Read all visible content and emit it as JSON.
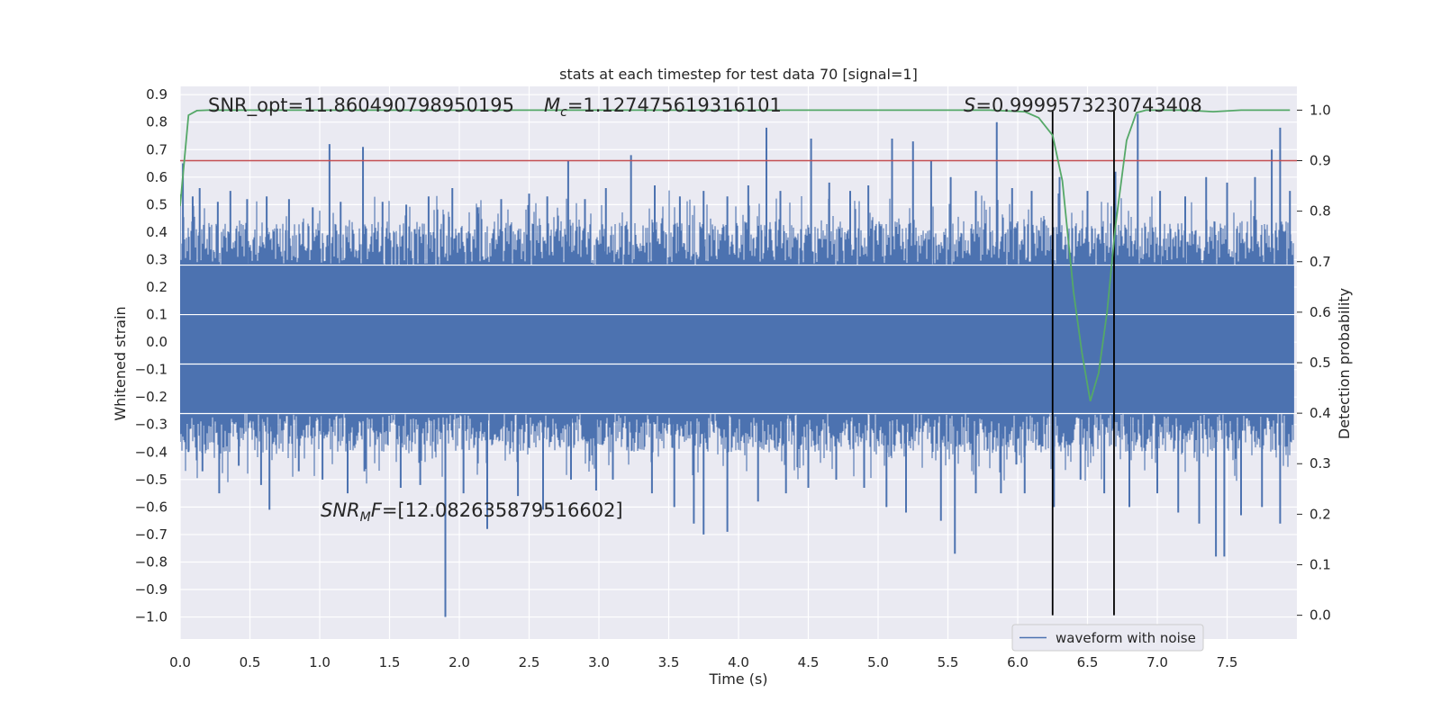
{
  "chart_data": {
    "type": "line",
    "title": "stats at each timestep for test data 70 [signal=1]",
    "xlabel": "Time (s)",
    "ylabel": "Whitened strain",
    "y2label": "Detection probability",
    "xlim": [
      0.0,
      8.0
    ],
    "ylim": [
      -1.08,
      0.93
    ],
    "y2lim": [
      -0.047,
      1.047
    ],
    "xticks": [
      0.0,
      0.5,
      1.0,
      1.5,
      2.0,
      2.5,
      3.0,
      3.5,
      4.0,
      4.5,
      5.0,
      5.5,
      6.0,
      6.5,
      7.0,
      7.5
    ],
    "xtick_labels": [
      "0.0",
      "0.5",
      "1.0",
      "1.5",
      "2.0",
      "2.5",
      "3.0",
      "3.5",
      "4.0",
      "4.5",
      "5.0",
      "5.5",
      "6.0",
      "6.5",
      "7.0",
      "7.5"
    ],
    "yticks": [
      0.9,
      0.8,
      0.7,
      0.6,
      0.5,
      0.4,
      0.3,
      0.2,
      0.1,
      0.0,
      -0.1,
      -0.2,
      -0.3,
      -0.4,
      -0.5,
      -0.6,
      -0.7,
      -0.8,
      -0.9,
      -1.0
    ],
    "ytick_labels": [
      "0.9",
      "0.8",
      "0.7",
      "0.6",
      "0.5",
      "0.4",
      "0.3",
      "0.2",
      "0.1",
      "0.0",
      "−0.1",
      "−0.2",
      "−0.3",
      "−0.4",
      "−0.5",
      "−0.6",
      "−0.7",
      "−0.8",
      "−0.9",
      "−1.0"
    ],
    "y2ticks": [
      1.0,
      0.9,
      0.8,
      0.7,
      0.6,
      0.5,
      0.4,
      0.3,
      0.2,
      0.1,
      0.0
    ],
    "y2tick_labels": [
      "1.0",
      "0.9",
      "0.8",
      "0.7",
      "0.6",
      "0.5",
      "0.4",
      "0.3",
      "0.2",
      "0.1",
      "0.0"
    ],
    "annotations": {
      "snr_opt": "SNR_opt=11.860490798950195",
      "mc_symbol": "M",
      "mc_sub": "c",
      "mc_value": "=1.127475619316101",
      "s_symbol": "S",
      "s_value": "=0.9999573230743408",
      "snr_mf_symbol": "SNR",
      "snr_mf_sub": "M",
      "snr_mf_mid": "F",
      "snr_mf_value": "=[12.082635879516602]"
    },
    "threshold": 0.9,
    "vlines": [
      6.25,
      6.69
    ],
    "legend": {
      "label": "waveform with noise",
      "placement": "lower-right"
    },
    "series": [
      {
        "name": "waveform with noise",
        "color": "#4c72b0",
        "core_amplitude": 0.28,
        "spikes": [
          {
            "x": 0.02,
            "y": 0.65
          },
          {
            "x": 0.09,
            "y": 0.53
          },
          {
            "x": 0.14,
            "y": 0.56
          },
          {
            "x": 0.27,
            "y": 0.51
          },
          {
            "x": 0.36,
            "y": 0.55
          },
          {
            "x": 0.48,
            "y": 0.52
          },
          {
            "x": 0.62,
            "y": 0.53
          },
          {
            "x": 0.78,
            "y": 0.52
          },
          {
            "x": 0.95,
            "y": 0.49
          },
          {
            "x": 1.07,
            "y": 0.72
          },
          {
            "x": 1.15,
            "y": 0.51
          },
          {
            "x": 1.31,
            "y": 0.71
          },
          {
            "x": 1.45,
            "y": 0.51
          },
          {
            "x": 1.62,
            "y": 0.5
          },
          {
            "x": 1.78,
            "y": 0.53
          },
          {
            "x": 1.95,
            "y": 0.56
          },
          {
            "x": 2.13,
            "y": 0.49
          },
          {
            "x": 2.3,
            "y": 0.52
          },
          {
            "x": 2.5,
            "y": 0.54
          },
          {
            "x": 2.63,
            "y": 0.53
          },
          {
            "x": 2.78,
            "y": 0.66
          },
          {
            "x": 2.9,
            "y": 0.52
          },
          {
            "x": 3.05,
            "y": 0.56
          },
          {
            "x": 3.23,
            "y": 0.68
          },
          {
            "x": 3.4,
            "y": 0.57
          },
          {
            "x": 3.58,
            "y": 0.53
          },
          {
            "x": 3.75,
            "y": 0.55
          },
          {
            "x": 3.92,
            "y": 0.53
          },
          {
            "x": 4.07,
            "y": 0.57
          },
          {
            "x": 4.2,
            "y": 0.78
          },
          {
            "x": 4.3,
            "y": 0.55
          },
          {
            "x": 4.52,
            "y": 0.74
          },
          {
            "x": 4.65,
            "y": 0.58
          },
          {
            "x": 4.8,
            "y": 0.55
          },
          {
            "x": 4.93,
            "y": 0.57
          },
          {
            "x": 5.1,
            "y": 0.74
          },
          {
            "x": 5.25,
            "y": 0.73
          },
          {
            "x": 5.38,
            "y": 0.66
          },
          {
            "x": 5.52,
            "y": 0.6
          },
          {
            "x": 5.7,
            "y": 0.55
          },
          {
            "x": 5.85,
            "y": 0.8
          },
          {
            "x": 5.96,
            "y": 0.56
          },
          {
            "x": 6.1,
            "y": 0.55
          },
          {
            "x": 6.3,
            "y": 0.6
          },
          {
            "x": 6.5,
            "y": 0.55
          },
          {
            "x": 6.7,
            "y": 0.62
          },
          {
            "x": 6.86,
            "y": 0.83
          },
          {
            "x": 7.02,
            "y": 0.55
          },
          {
            "x": 7.2,
            "y": 0.53
          },
          {
            "x": 7.35,
            "y": 0.6
          },
          {
            "x": 7.5,
            "y": 0.58
          },
          {
            "x": 7.7,
            "y": 0.6
          },
          {
            "x": 7.82,
            "y": 0.7
          },
          {
            "x": 7.88,
            "y": 0.78
          },
          {
            "x": 7.95,
            "y": 0.55
          },
          {
            "x": 0.06,
            "y": -0.4
          },
          {
            "x": 0.16,
            "y": -0.47
          },
          {
            "x": 0.28,
            "y": -0.55
          },
          {
            "x": 0.42,
            "y": -0.45
          },
          {
            "x": 0.58,
            "y": -0.52
          },
          {
            "x": 0.64,
            "y": -0.61
          },
          {
            "x": 0.85,
            "y": -0.47
          },
          {
            "x": 1.02,
            "y": -0.5
          },
          {
            "x": 1.2,
            "y": -0.55
          },
          {
            "x": 1.32,
            "y": -0.47
          },
          {
            "x": 1.58,
            "y": -0.53
          },
          {
            "x": 1.72,
            "y": -0.52
          },
          {
            "x": 1.9,
            "y": -1.0
          },
          {
            "x": 2.03,
            "y": -0.55
          },
          {
            "x": 2.2,
            "y": -0.68
          },
          {
            "x": 2.42,
            "y": -0.56
          },
          {
            "x": 2.6,
            "y": -0.61
          },
          {
            "x": 2.8,
            "y": -0.5
          },
          {
            "x": 2.98,
            "y": -0.54
          },
          {
            "x": 3.1,
            "y": -0.5
          },
          {
            "x": 3.38,
            "y": -0.55
          },
          {
            "x": 3.54,
            "y": -0.6
          },
          {
            "x": 3.68,
            "y": -0.66
          },
          {
            "x": 3.75,
            "y": -0.7
          },
          {
            "x": 3.92,
            "y": -0.69
          },
          {
            "x": 4.14,
            "y": -0.58
          },
          {
            "x": 4.34,
            "y": -0.55
          },
          {
            "x": 4.5,
            "y": -0.53
          },
          {
            "x": 4.7,
            "y": -0.5
          },
          {
            "x": 4.9,
            "y": -0.53
          },
          {
            "x": 5.06,
            "y": -0.6
          },
          {
            "x": 5.2,
            "y": -0.62
          },
          {
            "x": 5.45,
            "y": -0.65
          },
          {
            "x": 5.55,
            "y": -0.77
          },
          {
            "x": 5.7,
            "y": -0.55
          },
          {
            "x": 5.88,
            "y": -0.55
          },
          {
            "x": 6.05,
            "y": -0.55
          },
          {
            "x": 6.26,
            "y": -0.6
          },
          {
            "x": 6.45,
            "y": -0.5
          },
          {
            "x": 6.62,
            "y": -0.55
          },
          {
            "x": 6.8,
            "y": -0.6
          },
          {
            "x": 7.0,
            "y": -0.55
          },
          {
            "x": 7.15,
            "y": -0.62
          },
          {
            "x": 7.3,
            "y": -0.66
          },
          {
            "x": 7.42,
            "y": -0.78
          },
          {
            "x": 7.48,
            "y": -0.78
          },
          {
            "x": 7.6,
            "y": -0.63
          },
          {
            "x": 7.75,
            "y": -0.6
          },
          {
            "x": 7.88,
            "y": -0.66
          }
        ]
      },
      {
        "name": "Detection probability",
        "color": "#55a868",
        "axis": "right",
        "x": [
          0.0,
          0.06,
          0.12,
          0.2,
          1.0,
          2.0,
          3.0,
          4.0,
          5.0,
          5.8,
          6.05,
          6.15,
          6.25,
          6.32,
          6.4,
          6.46,
          6.52,
          6.58,
          6.64,
          6.7,
          6.78,
          6.85,
          6.92,
          7.0,
          7.2,
          7.4,
          7.6,
          7.95
        ],
        "y": [
          0.81,
          0.99,
          0.999,
          1.0,
          1.0,
          1.0,
          1.0,
          1.0,
          1.0,
          1.0,
          0.997,
          0.985,
          0.95,
          0.86,
          0.64,
          0.52,
          0.424,
          0.48,
          0.6,
          0.77,
          0.94,
          0.995,
          1.0,
          1.0,
          1.0,
          0.997,
          1.0,
          1.0
        ]
      },
      {
        "name": "threshold",
        "color": "#c44e52",
        "axis": "right",
        "value": 0.9
      }
    ]
  }
}
